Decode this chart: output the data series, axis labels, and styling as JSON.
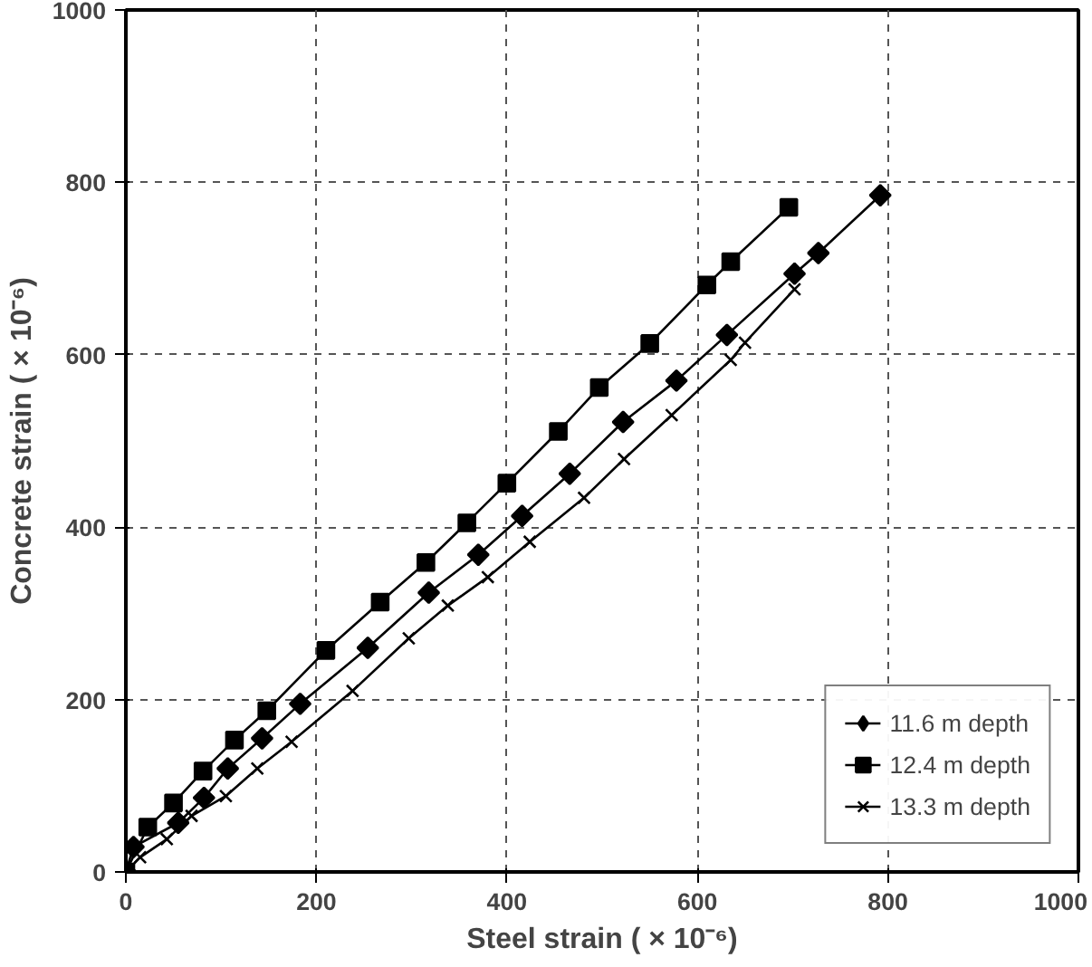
{
  "chart_data": {
    "type": "line",
    "xlabel": "Steel strain ( × 10⁻⁶)",
    "ylabel": "Concrete strain ( × 10⁻⁶)",
    "xlim": [
      0,
      1000
    ],
    "ylim": [
      0,
      1000
    ],
    "xticks": [
      0,
      200,
      400,
      600,
      800,
      1000
    ],
    "yticks": [
      0,
      200,
      400,
      600,
      800,
      1000
    ],
    "grid": true,
    "legend": "bottom right",
    "line_style": "solid",
    "series": [
      {
        "name": "11.6 m depth",
        "color": "#000000",
        "marker": "diamond",
        "x": [
          0,
          8,
          55,
          82,
          107,
          143,
          183,
          254,
          318,
          370,
          416,
          466,
          522,
          578,
          631,
          702,
          727,
          792
        ],
        "values": [
          0,
          29,
          57,
          86,
          120,
          155,
          195,
          260,
          324,
          368,
          413,
          462,
          522,
          570,
          623,
          694,
          718,
          785
        ]
      },
      {
        "name": "12.4 m depth",
        "color": "#000000",
        "marker": "square",
        "x": [
          0,
          23,
          50,
          81,
          114,
          148,
          210,
          267,
          315,
          358,
          400,
          454,
          497,
          550,
          610,
          635,
          696
        ],
        "values": [
          0,
          52,
          80,
          117,
          153,
          187,
          257,
          313,
          359,
          405,
          451,
          511,
          562,
          613,
          681,
          708,
          771
        ]
      },
      {
        "name": "13.3 m depth",
        "color": "#000000",
        "marker": "cross",
        "x": [
          0,
          15,
          43,
          69,
          105,
          138,
          174,
          238,
          297,
          338,
          380,
          424,
          481,
          523,
          573,
          635,
          650,
          702
        ],
        "values": [
          0,
          17,
          38,
          65,
          88,
          120,
          151,
          210,
          271,
          309,
          342,
          383,
          434,
          479,
          530,
          594,
          614,
          676
        ]
      }
    ]
  }
}
